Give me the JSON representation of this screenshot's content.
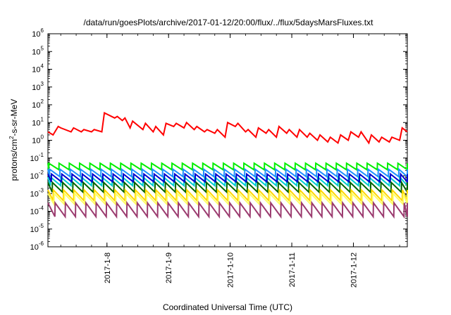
{
  "chart_data": {
    "type": "line",
    "title": "/data/run/goesPlots/archive/2017-01-12/20:00/flux/../flux/5daysMarsFluxes.txt",
    "xlabel": "Coordinated Universal Time (UTC)",
    "ylabel": {
      "base": "protons/cm",
      "sup": "2",
      "rest": "-s-sr-MeV"
    },
    "yscale": "log",
    "ylim": [
      1e-06,
      1000000.0
    ],
    "y_ticks": [
      {
        "value": 1e-06,
        "base": "10",
        "exp": "-6"
      },
      {
        "value": 1e-05,
        "base": "10",
        "exp": "-5"
      },
      {
        "value": 0.0001,
        "base": "10",
        "exp": "-4"
      },
      {
        "value": 0.001,
        "base": "10",
        "exp": "-3"
      },
      {
        "value": 0.01,
        "base": "10",
        "exp": "-2"
      },
      {
        "value": 0.1,
        "base": "10",
        "exp": "-1"
      },
      {
        "value": 1,
        "base": "10",
        "exp": "0"
      },
      {
        "value": 10,
        "base": "10",
        "exp": "1"
      },
      {
        "value": 100,
        "base": "10",
        "exp": "2"
      },
      {
        "value": 1000,
        "base": "10",
        "exp": "3"
      },
      {
        "value": 10000,
        "base": "10",
        "exp": "4"
      },
      {
        "value": 100000,
        "base": "10",
        "exp": "5"
      },
      {
        "value": 1000000,
        "base": "10",
        "exp": "6"
      }
    ],
    "xlim": [
      "2017-01-07 01:00",
      "2017-01-12 21:00"
    ],
    "x_ticks": [
      {
        "value": "2017-01-08 00:00",
        "label": "2017-1-8"
      },
      {
        "value": "2017-01-09 00:00",
        "label": "2017-1-9"
      },
      {
        "value": "2017-01-10 00:00",
        "label": "2017-1-10"
      },
      {
        "value": "2017-01-11 00:00",
        "label": "2017-1-11"
      },
      {
        "value": "2017-01-12 00:00",
        "label": "2017-1-12"
      }
    ],
    "grid": false,
    "legend": "none",
    "series": [
      {
        "color": "#ff0000",
        "x": [
          "2017-01-07 01:00",
          "2017-01-07 03:00",
          "2017-01-07 05:00",
          "2017-01-07 06:00",
          "2017-01-07 10:00",
          "2017-01-07 11:00",
          "2017-01-07 14:00",
          "2017-01-07 15:00",
          "2017-01-07 18:00",
          "2017-01-07 19:00",
          "2017-01-07 22:00",
          "2017-01-07 23:00",
          "2017-01-08 03:00",
          "2017-01-08 04:00",
          "2017-01-08 06:00",
          "2017-01-08 07:00",
          "2017-01-08 09:00",
          "2017-01-08 10:00",
          "2017-01-08 14:00",
          "2017-01-08 15:00",
          "2017-01-08 18:00",
          "2017-01-08 19:00",
          "2017-01-08 22:00",
          "2017-01-08 23:00",
          "2017-01-09 02:00",
          "2017-01-09 03:00",
          "2017-01-09 06:00",
          "2017-01-09 07:00",
          "2017-01-09 10:00",
          "2017-01-09 11:00",
          "2017-01-09 14:00",
          "2017-01-09 15:00",
          "2017-01-09 18:00",
          "2017-01-09 19:00",
          "2017-01-09 22:00",
          "2017-01-09 23:00",
          "2017-01-10 02:00",
          "2017-01-10 03:00",
          "2017-01-10 06:00",
          "2017-01-10 07:00",
          "2017-01-10 10:00",
          "2017-01-10 11:00",
          "2017-01-10 14:00",
          "2017-01-10 15:00",
          "2017-01-10 18:00",
          "2017-01-10 19:00",
          "2017-01-10 22:00",
          "2017-01-10 23:00",
          "2017-01-11 02:00",
          "2017-01-11 03:00",
          "2017-01-11 06:00",
          "2017-01-11 07:00",
          "2017-01-11 10:00",
          "2017-01-11 11:00",
          "2017-01-11 14:00",
          "2017-01-11 15:00",
          "2017-01-11 18:00",
          "2017-01-11 19:00",
          "2017-01-11 22:00",
          "2017-01-11 23:00",
          "2017-01-12 02:00",
          "2017-01-12 03:00",
          "2017-01-12 06:00",
          "2017-01-12 07:00",
          "2017-01-12 10:00",
          "2017-01-12 11:00",
          "2017-01-12 14:00",
          "2017-01-12 15:00",
          "2017-01-12 18:00",
          "2017-01-12 19:00",
          "2017-01-12 21:00"
        ],
        "values": [
          3,
          2,
          6,
          5,
          3,
          5,
          3,
          4,
          3,
          4,
          3,
          35,
          18,
          22,
          13,
          18,
          5,
          12,
          4,
          9,
          3,
          6,
          2,
          9,
          6,
          9,
          5,
          10,
          4,
          6,
          3,
          4,
          2.5,
          4,
          1.5,
          10,
          6,
          9,
          3,
          4,
          1.5,
          5,
          2.5,
          4,
          1.5,
          6,
          2.5,
          4,
          1.5,
          4,
          1.5,
          2.5,
          1,
          2,
          0.8,
          1.5,
          0.7,
          2,
          1,
          3,
          1.5,
          3,
          0.7,
          2,
          0.8,
          1.5,
          0.8,
          1.5,
          1,
          5,
          3
        ]
      },
      {
        "color": "#00ee00",
        "base": 0.022,
        "amplitude": 2.3,
        "period_hours": 4
      },
      {
        "color": "#1e90ff",
        "base": 0.009,
        "amplitude": 2.6,
        "period_hours": 4
      },
      {
        "color": "#00ced1",
        "base": 0.0028,
        "amplitude": 3.0,
        "period_hours": 4
      },
      {
        "color": "#0000cd",
        "base": 0.0045,
        "amplitude": 2.8,
        "period_hours": 4
      },
      {
        "color": "#006400",
        "base": 0.0012,
        "amplitude": 3.5,
        "period_hours": 4
      },
      {
        "color": "#ffd700",
        "base": 0.0004,
        "amplitude": 4.0,
        "period_hours": 4
      },
      {
        "color": "#ffff66",
        "base": 0.00025,
        "amplitude": 4.0,
        "period_hours": 4
      },
      {
        "color": "#9b3b6f",
        "base": 5e-05,
        "amplitude": 6.0,
        "period_hours": 4
      }
    ]
  }
}
